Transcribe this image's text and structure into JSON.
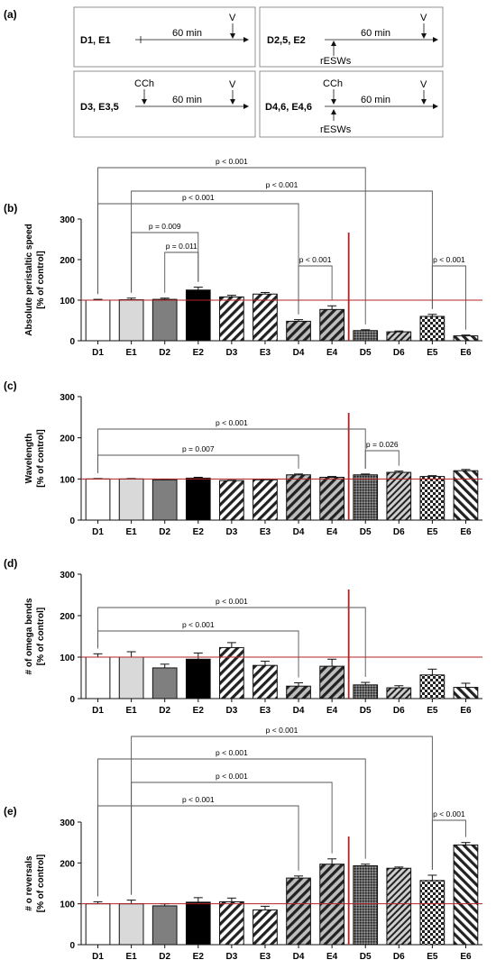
{
  "figure": {
    "panel_a_label": "(a)",
    "protocol_boxes": [
      {
        "group": "D1, E1",
        "duration": "60  min",
        "v_label": "V",
        "cch_label": "",
        "resw_label": ""
      },
      {
        "group": "D2,5, E2",
        "duration": "60  min",
        "v_label": "V",
        "cch_label": "",
        "resw_label": "rESWs"
      },
      {
        "group": "D3, E3,5",
        "duration": "60  min",
        "v_label": "V",
        "cch_label": "CCh",
        "resw_label": ""
      },
      {
        "group": "D4,6, E4,6",
        "duration": "60  min",
        "v_label": "V",
        "cch_label": "CCh",
        "resw_label": "rESWs"
      }
    ]
  },
  "colors": {
    "control_line": "#b22222",
    "divider_line": "#b22222",
    "bar_edge": "#111111"
  },
  "chart_data": [
    {
      "type": "bar",
      "panel": "(b)",
      "title": "",
      "ylabel": "Absolute peristaltic speed",
      "ylabel2": "[% of control]",
      "categories": [
        "D1",
        "E1",
        "D2",
        "E2",
        "D3",
        "E3",
        "D4",
        "E4",
        "D5",
        "D6",
        "E5",
        "E6"
      ],
      "values": [
        100,
        101,
        102,
        125,
        108,
        115,
        48,
        77,
        25,
        22,
        60,
        12
      ],
      "errors": [
        2,
        4,
        3,
        7,
        4,
        4,
        4,
        9,
        2,
        2,
        5,
        2
      ],
      "ylim": [
        0,
        300
      ],
      "yticks": [
        0,
        100,
        200,
        300
      ],
      "control_line": 100,
      "comparisons": [
        {
          "from": "D1",
          "to": "D5",
          "label": "p < 0.001"
        },
        {
          "from": "E1",
          "to": "E5",
          "label": "p < 0.001"
        },
        {
          "from": "D1",
          "to": "D4",
          "label": "p < 0.001"
        },
        {
          "from": "E1",
          "to": "E2",
          "label": "p = 0.009"
        },
        {
          "from": "D2",
          "to": "E2",
          "label": "p = 0.011"
        },
        {
          "from": "D4",
          "to": "E4",
          "label": "p < 0.001"
        },
        {
          "from": "E5",
          "to": "E6",
          "label": "p < 0.001"
        }
      ]
    },
    {
      "type": "bar",
      "panel": "(c)",
      "title": "",
      "ylabel": "Wavelength",
      "ylabel2": "[% of control]",
      "categories": [
        "D1",
        "E1",
        "D2",
        "E2",
        "D3",
        "E3",
        "D4",
        "E4",
        "D5",
        "D6",
        "E5",
        "E6"
      ],
      "values": [
        100,
        100,
        98,
        102,
        96,
        98,
        110,
        104,
        110,
        116,
        106,
        120
      ],
      "errors": [
        1,
        1,
        1,
        2,
        1,
        1,
        2,
        2,
        2,
        3,
        2,
        3
      ],
      "ylim": [
        0,
        300
      ],
      "yticks": [
        0,
        100,
        200,
        300
      ],
      "control_line": 100,
      "comparisons": [
        {
          "from": "D1",
          "to": "D5",
          "label": "p < 0.001"
        },
        {
          "from": "D1",
          "to": "D4",
          "label": "p = 0.007"
        },
        {
          "from": "D5",
          "to": "D6",
          "label": "p = 0.026"
        }
      ]
    },
    {
      "type": "bar",
      "panel": "(d)",
      "title": "",
      "ylabel": "# of omega bends",
      "ylabel2": "[% of control]",
      "categories": [
        "D1",
        "E1",
        "D2",
        "E2",
        "D3",
        "E3",
        "D4",
        "E4",
        "D5",
        "D6",
        "E5",
        "E6"
      ],
      "values": [
        100,
        100,
        74,
        95,
        123,
        80,
        30,
        78,
        33,
        26,
        57,
        27
      ],
      "errors": [
        8,
        13,
        9,
        15,
        12,
        10,
        8,
        17,
        6,
        5,
        14,
        10
      ],
      "ylim": [
        0,
        300
      ],
      "yticks": [
        0,
        100,
        200,
        300
      ],
      "control_line": 100,
      "comparisons": [
        {
          "from": "D1",
          "to": "D5",
          "label": "p < 0.001"
        },
        {
          "from": "D1",
          "to": "D4",
          "label": "p < 0.001"
        }
      ]
    },
    {
      "type": "bar",
      "panel": "(e)",
      "title": "",
      "ylabel": "# o reversals",
      "ylabel2": "[% of control]",
      "categories": [
        "D1",
        "E1",
        "D2",
        "E2",
        "D3",
        "E3",
        "D4",
        "E4",
        "D5",
        "D6",
        "E5",
        "E6"
      ],
      "values": [
        100,
        100,
        95,
        104,
        105,
        85,
        163,
        197,
        193,
        187,
        157,
        244
      ],
      "errors": [
        5,
        9,
        5,
        11,
        9,
        9,
        5,
        13,
        4,
        3,
        13,
        6
      ],
      "ylim": [
        0,
        300
      ],
      "yticks": [
        0,
        100,
        200,
        300
      ],
      "control_line": 100,
      "comparisons": [
        {
          "from": "E1",
          "to": "E5",
          "label": "p < 0.001"
        },
        {
          "from": "D1",
          "to": "D5",
          "label": "p < 0.001"
        },
        {
          "from": "E1",
          "to": "E4",
          "label": "p < 0.001"
        },
        {
          "from": "D1",
          "to": "D4",
          "label": "p < 0.001"
        },
        {
          "from": "E5",
          "to": "E6",
          "label": "p < 0.001"
        }
      ]
    }
  ]
}
